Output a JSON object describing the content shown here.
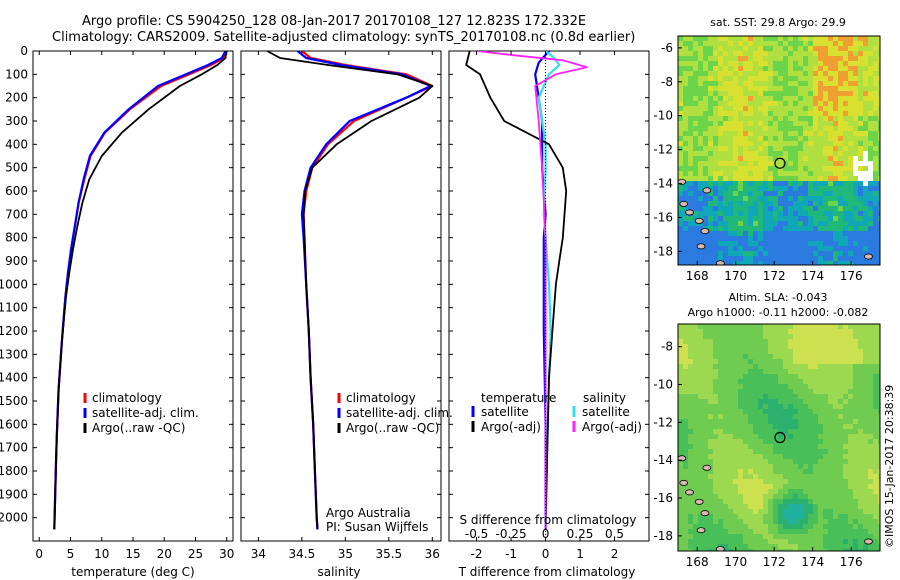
{
  "header": {
    "line1": "Argo profile: CS 5904250_128 08-Jan-2017 20170108_127 12.823S 172.332E",
    "line2": "Climatology: CARS2009. Satellite-adjusted climatology: synTS_20170108.nc (0.8d earlier)"
  },
  "colors": {
    "climatology": "#ff0000",
    "satellite": "#0000ff",
    "argo": "#000000",
    "sat_salinity": "#33e0e8",
    "argo_salinity": "#ff22ff"
  },
  "chart_data": [
    {
      "id": "temperature",
      "type": "line",
      "xlabel": "temperature (deg C)",
      "xlim": [
        -1,
        31
      ],
      "ylim": [
        2100,
        0
      ],
      "xticks": [
        "0",
        "5",
        "10",
        "15",
        "20",
        "25",
        "30"
      ],
      "yticks": [
        "0",
        "100",
        "200",
        "300",
        "400",
        "500",
        "600",
        "700",
        "800",
        "900",
        "1000",
        "1100",
        "1200",
        "1300",
        "1400",
        "1500",
        "1600",
        "1700",
        "1800",
        "1900",
        "2000"
      ],
      "legend": [
        "climatology",
        "satellite-adj. clim.",
        "Argo(..raw -QC)"
      ],
      "series": [
        {
          "name": "climatology",
          "x": [
            30,
            29.5,
            27.5,
            24,
            19.5,
            14.5,
            10.5,
            8.2,
            7.2,
            6.3,
            5.7,
            5.1,
            4.6,
            4.2,
            3.9,
            3.6,
            3.35,
            3.1,
            2.95,
            2.8,
            2.7,
            2.55,
            2.4
          ],
          "y": [
            0,
            30,
            60,
            100,
            150,
            250,
            350,
            450,
            550,
            650,
            750,
            850,
            950,
            1050,
            1150,
            1250,
            1350,
            1450,
            1550,
            1650,
            1750,
            1900,
            2050
          ]
        },
        {
          "name": "satellite-adj. clim.",
          "x": [
            29.8,
            29.2,
            27,
            23.5,
            19,
            14.3,
            10.4,
            8.1,
            7.1,
            6.3,
            5.7,
            5.1,
            4.6,
            4.2,
            3.9,
            3.6,
            3.35,
            3.1,
            2.95,
            2.8,
            2.7,
            2.55,
            2.4
          ],
          "y": [
            0,
            30,
            60,
            100,
            150,
            250,
            350,
            450,
            550,
            650,
            750,
            850,
            950,
            1050,
            1150,
            1250,
            1350,
            1450,
            1550,
            1650,
            1750,
            1900,
            2050
          ]
        },
        {
          "name": "Argo(..raw -QC)",
          "x": [
            29.9,
            29.8,
            28.5,
            26,
            22.5,
            17.5,
            13.2,
            10,
            8,
            6.9,
            6.1,
            5.4,
            4.8,
            4.3,
            3.95,
            3.6,
            3.35,
            3.1,
            2.95,
            2.8,
            2.7,
            2.55,
            2.4
          ],
          "y": [
            0,
            30,
            60,
            100,
            150,
            250,
            350,
            450,
            550,
            650,
            750,
            850,
            950,
            1050,
            1150,
            1250,
            1350,
            1450,
            1550,
            1650,
            1750,
            1900,
            2050
          ]
        }
      ]
    },
    {
      "id": "salinity",
      "type": "line",
      "xlabel": "salinity",
      "xlim": [
        33.8,
        36.1
      ],
      "ylim": [
        2100,
        0
      ],
      "xticks": [
        "34",
        "34.5",
        "35",
        "35.5",
        "36"
      ],
      "legend": [
        "climatology",
        "satellite-adj. clim.",
        "Argo(..raw -QC)"
      ],
      "annotation": [
        "Argo Australia",
        "PI: Susan Wijffels"
      ],
      "series": [
        {
          "name": "climatology",
          "x": [
            34.5,
            34.6,
            35.0,
            35.7,
            36.0,
            35.7,
            35.1,
            34.8,
            34.62,
            34.55,
            34.52,
            34.53,
            34.55,
            34.58,
            34.6,
            34.63,
            34.65,
            34.67,
            34.68
          ],
          "y": [
            0,
            30,
            60,
            100,
            150,
            200,
            300,
            400,
            500,
            600,
            700,
            800,
            1000,
            1200,
            1400,
            1600,
            1800,
            2000,
            2050
          ]
        },
        {
          "name": "satellite-adj. clim.",
          "x": [
            34.45,
            34.55,
            34.95,
            35.65,
            35.98,
            35.7,
            35.05,
            34.78,
            34.6,
            34.53,
            34.5,
            34.52,
            34.55,
            34.58,
            34.6,
            34.63,
            34.65,
            34.67,
            34.68
          ],
          "y": [
            0,
            30,
            60,
            100,
            150,
            200,
            300,
            400,
            500,
            600,
            700,
            800,
            1000,
            1200,
            1400,
            1600,
            1800,
            2000,
            2050
          ]
        },
        {
          "name": "Argo(..raw -QC)",
          "x": [
            34.1,
            34.25,
            34.8,
            35.6,
            36.0,
            35.85,
            35.3,
            34.9,
            34.62,
            34.54,
            34.52,
            34.53,
            34.55,
            34.58,
            34.6,
            34.63,
            34.65,
            34.67,
            34.68
          ],
          "y": [
            0,
            30,
            60,
            100,
            150,
            200,
            300,
            400,
            500,
            600,
            700,
            800,
            1000,
            1200,
            1400,
            1600,
            1800,
            2000,
            2050
          ]
        }
      ]
    },
    {
      "id": "difference",
      "type": "line",
      "xlabel_bottom": "T difference from climatology",
      "xlabel_top": "S difference from climatology",
      "xlim": [
        -2.8,
        3.0
      ],
      "ylim": [
        2100,
        0
      ],
      "xticks": [
        "-2",
        "-1",
        "0",
        "1",
        "2"
      ],
      "sticks": [
        "-0.5",
        "-0.25",
        "0",
        "0.25",
        "0.5"
      ],
      "legend_temperature_title": "temperature",
      "legend_salinity_title": "salinity",
      "legend": [
        "satellite",
        "Argo(-adj)",
        "satellite",
        "Argo(-adj)"
      ],
      "series": [
        {
          "name": "satellite",
          "variable": "temperature",
          "x": [
            0.1,
            -0.2,
            -0.3,
            -0.2,
            -0.1,
            -0.1,
            -0.1,
            -0.05,
            0.0,
            -0.05,
            -0.05,
            0.0,
            0.0
          ],
          "y": [
            0,
            50,
            100,
            200,
            300,
            400,
            500,
            600,
            700,
            800,
            1200,
            1600,
            2050
          ]
        },
        {
          "name": "Argo(-adj)",
          "variable": "temperature",
          "x": [
            -2.2,
            -2.3,
            -1.9,
            -1.6,
            -1.2,
            0.1,
            0.5,
            0.6,
            0.55,
            0.5,
            0.4,
            0.3,
            0.2,
            0.1,
            0.05,
            0.0
          ],
          "y": [
            0,
            60,
            100,
            200,
            300,
            400,
            500,
            600,
            700,
            800,
            900,
            1000,
            1200,
            1400,
            1700,
            2050
          ]
        },
        {
          "name": "satellite",
          "variable": "salinity",
          "x": [
            0.0,
            0.25,
            0.4,
            0.1,
            -0.2,
            -0.1,
            0.0,
            0.0,
            -0.05,
            0.0,
            0.1,
            0.15,
            0.1,
            0.05,
            0.0
          ],
          "y": [
            0,
            30,
            60,
            100,
            200,
            300,
            400,
            500,
            700,
            800,
            1000,
            1200,
            1400,
            1700,
            2050
          ]
        },
        {
          "name": "Argo(-adj)",
          "variable": "salinity",
          "x": [
            -2.0,
            -0.8,
            0.5,
            1.2,
            0.3,
            -0.3,
            -0.2,
            -0.1,
            0.0,
            0.0,
            0.0
          ],
          "y": [
            0,
            20,
            40,
            70,
            100,
            150,
            300,
            500,
            800,
            1200,
            2050
          ]
        }
      ]
    },
    {
      "id": "sst_map",
      "type": "heatmap",
      "title": "sat. SST: 29.8 Argo: 29.9",
      "xlim": [
        167,
        177.5
      ],
      "ylim": [
        -18.8,
        -5.3
      ],
      "xticks": [
        "168",
        "170",
        "172",
        "174",
        "176"
      ],
      "yticks": [
        "-6",
        "-8",
        "-10",
        "-12",
        "-14",
        "-16",
        "-18"
      ],
      "marker": {
        "lon": 172.3,
        "lat": -12.8
      }
    },
    {
      "id": "sla_map",
      "type": "heatmap",
      "title": "Altim. SLA: -0.043",
      "subtitle": "Argo h1000: -0.11 h2000: -0.082",
      "xlim": [
        167,
        177.5
      ],
      "ylim": [
        -18.8,
        -6.8
      ],
      "xticks": [
        "168",
        "170",
        "172",
        "174",
        "176"
      ],
      "yticks": [
        "-8",
        "-10",
        "-12",
        "-14",
        "-16",
        "-18"
      ],
      "marker": {
        "lon": 172.3,
        "lat": -12.8
      }
    }
  ],
  "footer": {
    "stamp": "©IMOS 15-Jan-2017 20:38:39"
  }
}
